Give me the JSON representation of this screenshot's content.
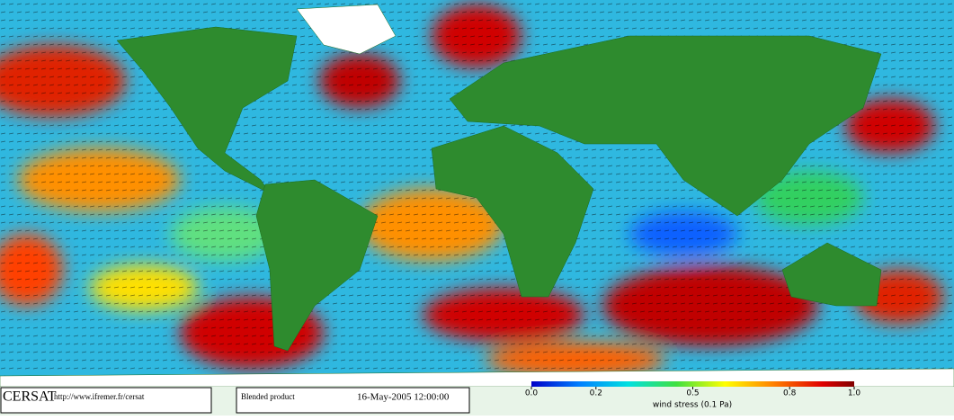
{
  "footer": {
    "logo": "CERSAT",
    "url": "http://www.ifremer.fr/cersat",
    "product": "Blended product",
    "date": "16-May-2005 12:00:00"
  },
  "colorbar": {
    "label": "wind stress (0.1 Pa)",
    "lim": [
      0,
      1
    ],
    "ticks": [
      {
        "value": 0,
        "label": "0.0"
      },
      0.2,
      0.5,
      0.8,
      {
        "value": 1,
        "label": "1.0"
      }
    ]
  }
}
